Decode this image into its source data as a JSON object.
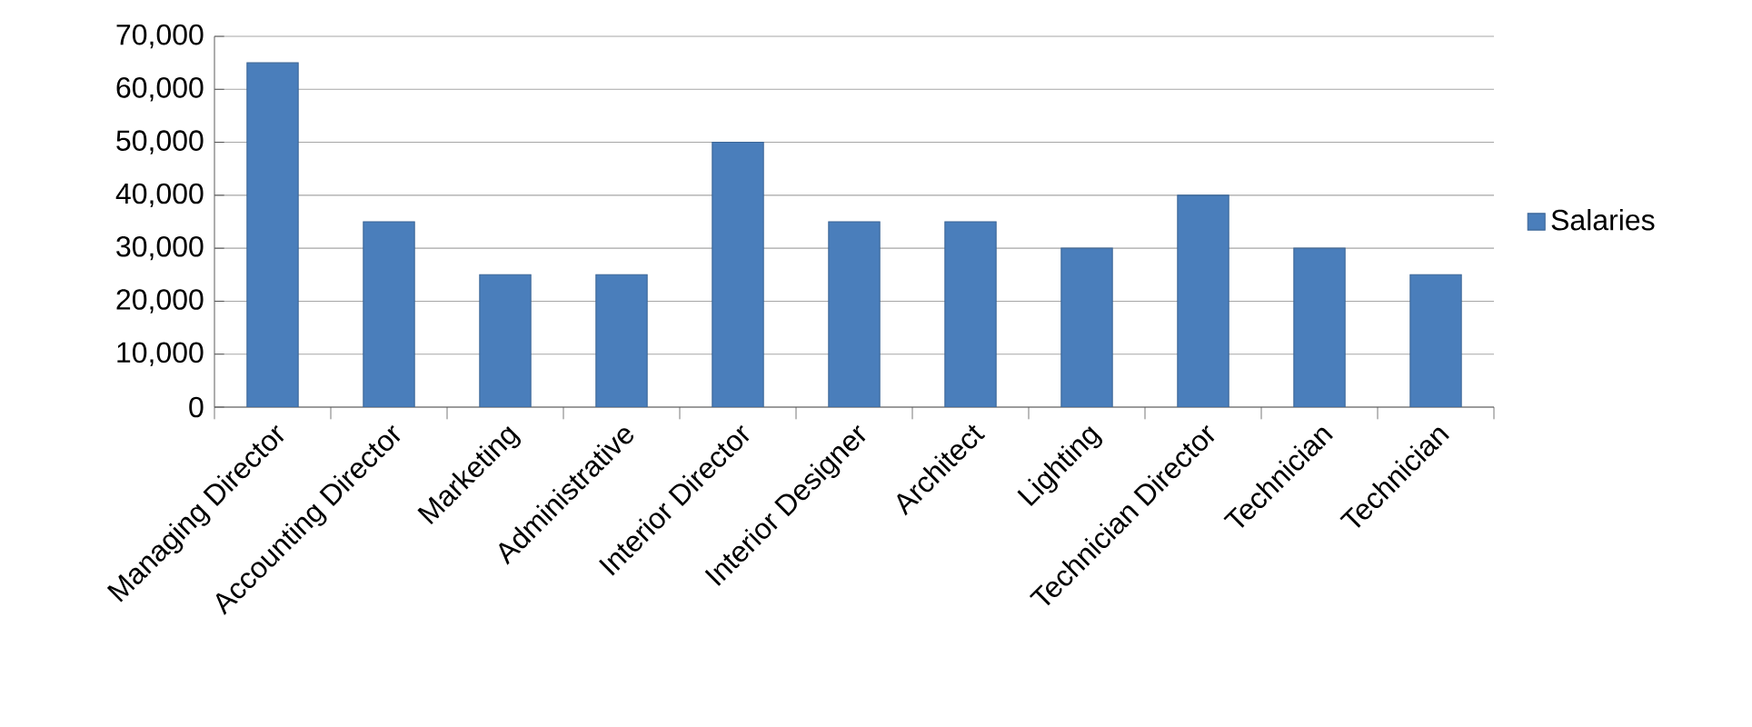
{
  "chart_data": {
    "type": "bar",
    "categories": [
      "Managing Director",
      "Accounting Director",
      "Marketing",
      "Administrative",
      "Interior Director",
      "Interior Designer",
      "Architect",
      "Lighting",
      "Technician Director",
      "Technician",
      "Technician"
    ],
    "series": [
      {
        "name": "Salaries",
        "color": "#4a7ebb",
        "values": [
          65000,
          35000,
          25000,
          25000,
          50000,
          35000,
          35000,
          30000,
          40000,
          30000,
          25000
        ]
      }
    ],
    "ylim": [
      0,
      70000
    ],
    "yticks": [
      {
        "value": 0,
        "label": "0"
      },
      {
        "value": 10000,
        "label": "10,000"
      },
      {
        "value": 20000,
        "label": "20,000"
      },
      {
        "value": 30000,
        "label": "30,000"
      },
      {
        "value": 40000,
        "label": "40,000"
      },
      {
        "value": 50000,
        "label": "50,000"
      },
      {
        "value": 60000,
        "label": "60,000"
      },
      {
        "value": 70000,
        "label": "70,000"
      }
    ],
    "grid": "y",
    "legend": "right"
  }
}
